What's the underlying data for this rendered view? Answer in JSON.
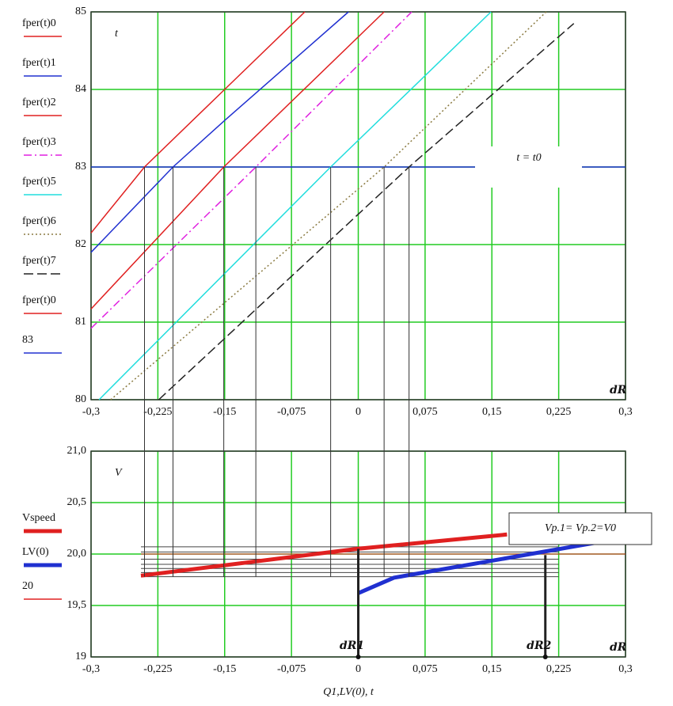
{
  "chart_data": [
    {
      "type": "line",
      "y_label": "t",
      "x_label": "dR",
      "annotation": "t = t0",
      "xlim": [
        -0.3,
        0.3
      ],
      "xticks": [
        {
          "value": -0.3,
          "label": "-0,3"
        },
        {
          "value": -0.225,
          "label": "-0,225"
        },
        {
          "value": -0.15,
          "label": "-0,15"
        },
        {
          "value": -0.075,
          "label": "-0,075"
        },
        0,
        {
          "value": 0.075,
          "label": "0,075"
        },
        {
          "value": 0.15,
          "label": "0,15"
        },
        {
          "value": 0.225,
          "label": "0,225"
        },
        {
          "value": 0.3,
          "label": "0,3"
        }
      ],
      "ylim": [
        80,
        85
      ],
      "yticks": [
        80,
        81,
        82,
        83,
        84,
        85
      ],
      "grid": true,
      "grid_color": "#22cc22",
      "series": [
        {
          "name": "fper(t)0",
          "color": "#e02020",
          "style": "solid",
          "x": [
            -0.3,
            -0.24,
            -0.15,
            -0.06
          ],
          "values": [
            82.15,
            83,
            84,
            85
          ]
        },
        {
          "name": "fper(t)1",
          "color": "#2030d0",
          "style": "solid",
          "x": [
            -0.3,
            -0.208,
            -0.15,
            -0.011
          ],
          "values": [
            81.9,
            83,
            83.6,
            85
          ]
        },
        {
          "name": "fper(t)2",
          "color": "#e02020",
          "style": "solid",
          "x": [
            -0.3,
            -0.151,
            0.029
          ],
          "values": [
            81.17,
            83,
            85
          ]
        },
        {
          "name": "fper(t)3",
          "color": "#e020e0",
          "style": "dashdot",
          "x": [
            -0.3,
            -0.115,
            0.06
          ],
          "values": [
            80.92,
            83,
            85
          ]
        },
        {
          "name": "fper(t)5",
          "color": "#20dddd",
          "style": "solid",
          "x": [
            -0.291,
            -0.031,
            0.149
          ],
          "values": [
            80,
            83,
            85
          ]
        },
        {
          "name": "fper(t)6",
          "color": "#8a7a40",
          "style": "dotted",
          "x": [
            -0.278,
            0.029,
            0.211
          ],
          "values": [
            80,
            83,
            85
          ]
        },
        {
          "name": "fper(t)7",
          "color": "#222222",
          "style": "dashed",
          "x": [
            -0.224,
            0.057,
            0.242
          ],
          "values": [
            80,
            83,
            84.85
          ]
        }
      ],
      "legend_extra": [
        {
          "name": "fper(t)0",
          "color": "#e02020"
        }
      ],
      "reference_line": {
        "name": "83",
        "value": 83,
        "color": "#2030d0"
      },
      "guide_x": [
        -0.24,
        -0.208,
        -0.151,
        -0.115,
        -0.031,
        0.029,
        0.057
      ]
    },
    {
      "type": "line",
      "y_label": "V",
      "x_label": "dR",
      "axis_title": "Q1,LV(0), t",
      "annotation": "Vp.1= Vp.2=V0",
      "xlim": [
        -0.3,
        0.3
      ],
      "xticks": [
        {
          "value": -0.3,
          "label": "-0,3"
        },
        {
          "value": -0.225,
          "label": "-0,225"
        },
        {
          "value": -0.15,
          "label": "-0,15"
        },
        {
          "value": -0.075,
          "label": "-0,075"
        },
        0,
        {
          "value": 0.075,
          "label": "0,075"
        },
        {
          "value": 0.15,
          "label": "0,15"
        },
        {
          "value": 0.225,
          "label": "0,225"
        },
        {
          "value": 0.3,
          "label": "0,3"
        }
      ],
      "ylim": [
        19,
        21
      ],
      "yticks": [
        19,
        {
          "value": 19.5,
          "label": "19,5"
        },
        {
          "value": 20,
          "label": "20,0"
        },
        {
          "value": 20.5,
          "label": "20,5"
        },
        {
          "value": 21,
          "label": "21,0"
        }
      ],
      "grid": true,
      "grid_color": "#22cc22",
      "series": [
        {
          "name": "Vspeed",
          "color": "#e02020",
          "style": "thick",
          "x": [
            -0.244,
            -0.002,
            0.167
          ],
          "values": [
            19.79,
            20.05,
            20.19
          ]
        },
        {
          "name": "LV(0)",
          "color": "#2030d0",
          "style": "thick",
          "x": [
            0,
            0.04,
            0.273
          ],
          "values": [
            19.62,
            19.77,
            20.12
          ]
        }
      ],
      "reference_line": {
        "name": "20",
        "value": 20,
        "color": "#e02020"
      },
      "guide_y": [
        20.07,
        20.02,
        19.95,
        19.9,
        19.86,
        19.82,
        19.78
      ],
      "markers": [
        {
          "label": "dR1",
          "x": 0,
          "value": 20.05
        },
        {
          "label": "dR2",
          "x": 0.21,
          "value": 19.99
        }
      ]
    }
  ]
}
